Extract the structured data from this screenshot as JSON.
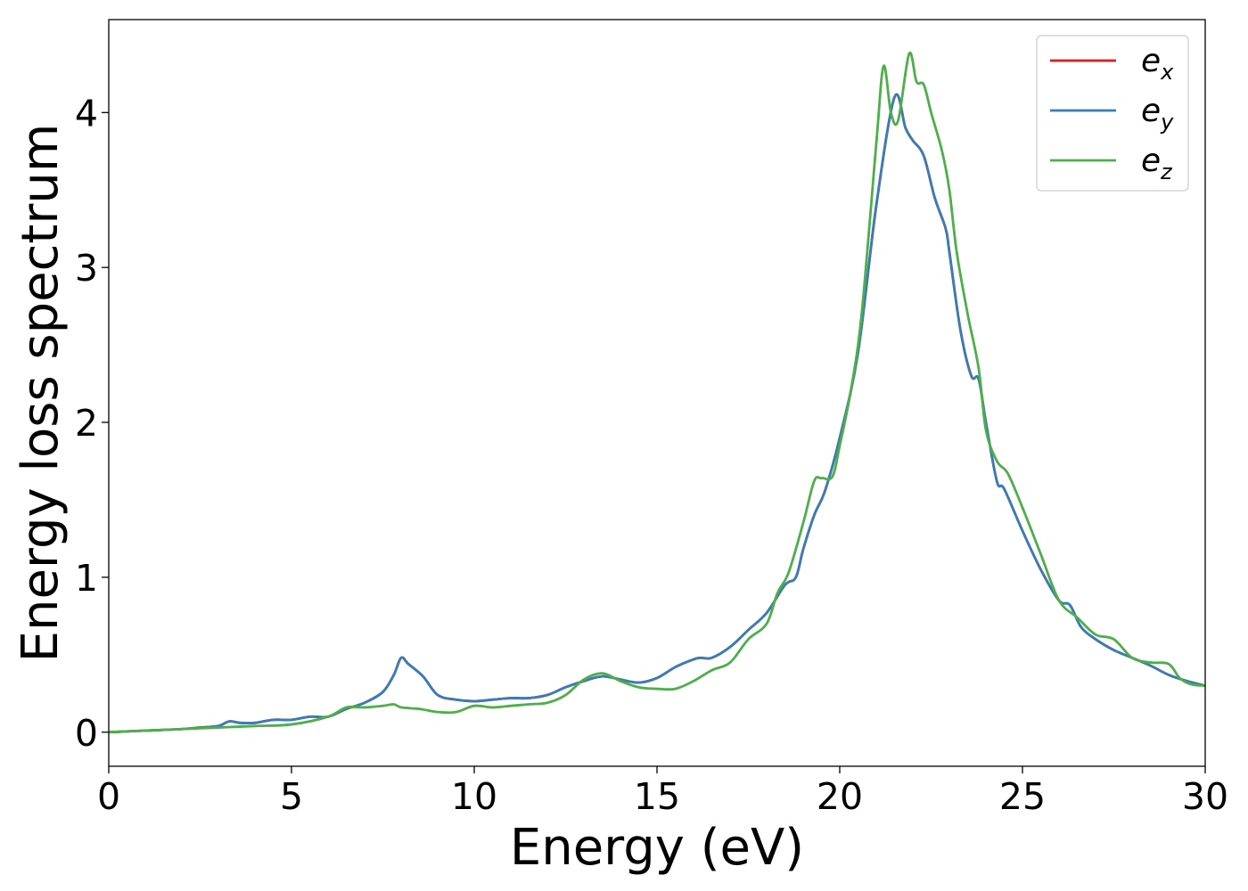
{
  "chart_data": {
    "type": "line",
    "xlabel": "Energy (eV)",
    "ylabel": "Energy loss spectrum",
    "xlim": [
      0,
      30
    ],
    "ylim": [
      -0.22,
      4.6
    ],
    "xticks": [
      0,
      5,
      10,
      15,
      20,
      25,
      30
    ],
    "yticks": [
      0,
      1,
      2,
      3,
      4
    ],
    "grid": false,
    "legend_position": "top-right",
    "colors": {
      "ex": "#e41a1c",
      "ey": "#377eb8",
      "ez": "#4daf4a"
    },
    "legend": [
      {
        "key": "ex",
        "base": "e",
        "sub": "x"
      },
      {
        "key": "ey",
        "base": "e",
        "sub": "y"
      },
      {
        "key": "ez",
        "base": "e",
        "sub": "z"
      }
    ],
    "series": [
      {
        "name": "e_x",
        "key": "ex",
        "x": [
          0,
          1,
          2,
          2.5,
          3,
          3.3,
          3.6,
          4,
          4.5,
          5,
          5.5,
          6,
          6.5,
          7,
          7.5,
          7.8,
          8,
          8.2,
          8.6,
          9,
          9.5,
          10,
          10.5,
          11,
          11.5,
          12,
          12.5,
          13,
          13.5,
          14,
          14.5,
          15,
          15.5,
          16,
          16.2,
          16.5,
          17,
          17.5,
          18,
          18.5,
          18.8,
          19,
          19.3,
          19.6,
          20,
          20.5,
          21,
          21.5,
          21.8,
          22,
          22.3,
          22.6,
          22.9,
          23,
          23.3,
          23.6,
          23.8,
          24,
          24.3,
          24.5,
          25,
          25.5,
          26,
          26.3,
          26.6,
          27,
          27.5,
          28,
          28.5,
          29,
          29.5,
          30
        ],
        "y": [
          0,
          0.01,
          0.02,
          0.03,
          0.04,
          0.07,
          0.06,
          0.06,
          0.08,
          0.08,
          0.1,
          0.1,
          0.15,
          0.19,
          0.26,
          0.37,
          0.48,
          0.44,
          0.36,
          0.24,
          0.21,
          0.2,
          0.21,
          0.22,
          0.22,
          0.24,
          0.29,
          0.33,
          0.36,
          0.34,
          0.32,
          0.35,
          0.42,
          0.47,
          0.48,
          0.48,
          0.55,
          0.66,
          0.77,
          0.95,
          1.0,
          1.18,
          1.4,
          1.56,
          1.9,
          2.45,
          3.4,
          4.1,
          3.9,
          3.82,
          3.72,
          3.45,
          3.25,
          3.1,
          2.6,
          2.3,
          2.28,
          2.0,
          1.62,
          1.57,
          1.3,
          1.05,
          0.85,
          0.82,
          0.68,
          0.6,
          0.53,
          0.48,
          0.43,
          0.37,
          0.33,
          0.3
        ]
      },
      {
        "name": "e_y",
        "key": "ey",
        "x": [
          0,
          1,
          2,
          2.5,
          3,
          3.3,
          3.6,
          4,
          4.5,
          5,
          5.5,
          6,
          6.5,
          7,
          7.5,
          7.8,
          8,
          8.2,
          8.6,
          9,
          9.5,
          10,
          10.5,
          11,
          11.5,
          12,
          12.5,
          13,
          13.5,
          14,
          14.5,
          15,
          15.5,
          16,
          16.2,
          16.5,
          17,
          17.5,
          18,
          18.5,
          18.8,
          19,
          19.3,
          19.6,
          20,
          20.5,
          21,
          21.5,
          21.8,
          22,
          22.3,
          22.6,
          22.9,
          23,
          23.3,
          23.6,
          23.8,
          24,
          24.3,
          24.5,
          25,
          25.5,
          26,
          26.3,
          26.6,
          27,
          27.5,
          28,
          28.5,
          29,
          29.5,
          30
        ],
        "y": [
          0,
          0.01,
          0.02,
          0.03,
          0.04,
          0.07,
          0.06,
          0.06,
          0.08,
          0.08,
          0.1,
          0.1,
          0.15,
          0.19,
          0.26,
          0.37,
          0.48,
          0.44,
          0.36,
          0.24,
          0.21,
          0.2,
          0.21,
          0.22,
          0.22,
          0.24,
          0.29,
          0.33,
          0.36,
          0.34,
          0.32,
          0.35,
          0.42,
          0.47,
          0.48,
          0.48,
          0.55,
          0.66,
          0.77,
          0.95,
          1.0,
          1.18,
          1.4,
          1.56,
          1.9,
          2.45,
          3.4,
          4.1,
          3.9,
          3.82,
          3.72,
          3.45,
          3.25,
          3.1,
          2.6,
          2.3,
          2.28,
          2.0,
          1.62,
          1.57,
          1.3,
          1.05,
          0.85,
          0.82,
          0.68,
          0.6,
          0.53,
          0.48,
          0.43,
          0.37,
          0.33,
          0.3
        ]
      },
      {
        "name": "e_z",
        "key": "ez",
        "x": [
          0,
          1,
          2,
          3,
          4,
          5,
          6,
          6.5,
          7,
          7.5,
          7.8,
          8,
          8.5,
          9,
          9.5,
          10,
          10.5,
          11,
          11.5,
          12,
          12.5,
          13,
          13.5,
          14,
          14.5,
          15,
          15.5,
          16,
          16.5,
          17,
          17.5,
          18,
          18.3,
          18.6,
          19,
          19.3,
          19.5,
          19.8,
          20,
          20.3,
          20.6,
          21,
          21.2,
          21.4,
          21.6,
          21.9,
          22.1,
          22.3,
          22.5,
          22.8,
          23,
          23.2,
          23.5,
          23.8,
          24,
          24.3,
          24.6,
          25,
          25.5,
          26,
          26.5,
          27,
          27.5,
          28,
          28.5,
          29,
          29.3,
          29.6,
          30
        ],
        "y": [
          0,
          0.01,
          0.02,
          0.03,
          0.04,
          0.05,
          0.1,
          0.16,
          0.16,
          0.17,
          0.18,
          0.16,
          0.15,
          0.13,
          0.13,
          0.17,
          0.16,
          0.17,
          0.18,
          0.19,
          0.24,
          0.34,
          0.38,
          0.33,
          0.29,
          0.28,
          0.28,
          0.33,
          0.4,
          0.45,
          0.6,
          0.7,
          0.9,
          1.03,
          1.35,
          1.62,
          1.64,
          1.65,
          1.85,
          2.2,
          2.7,
          3.8,
          4.3,
          4.0,
          3.95,
          4.38,
          4.2,
          4.18,
          4.0,
          3.75,
          3.5,
          3.1,
          2.7,
          2.35,
          1.95,
          1.75,
          1.67,
          1.45,
          1.15,
          0.85,
          0.74,
          0.63,
          0.6,
          0.48,
          0.45,
          0.44,
          0.35,
          0.31,
          0.3
        ]
      }
    ]
  }
}
